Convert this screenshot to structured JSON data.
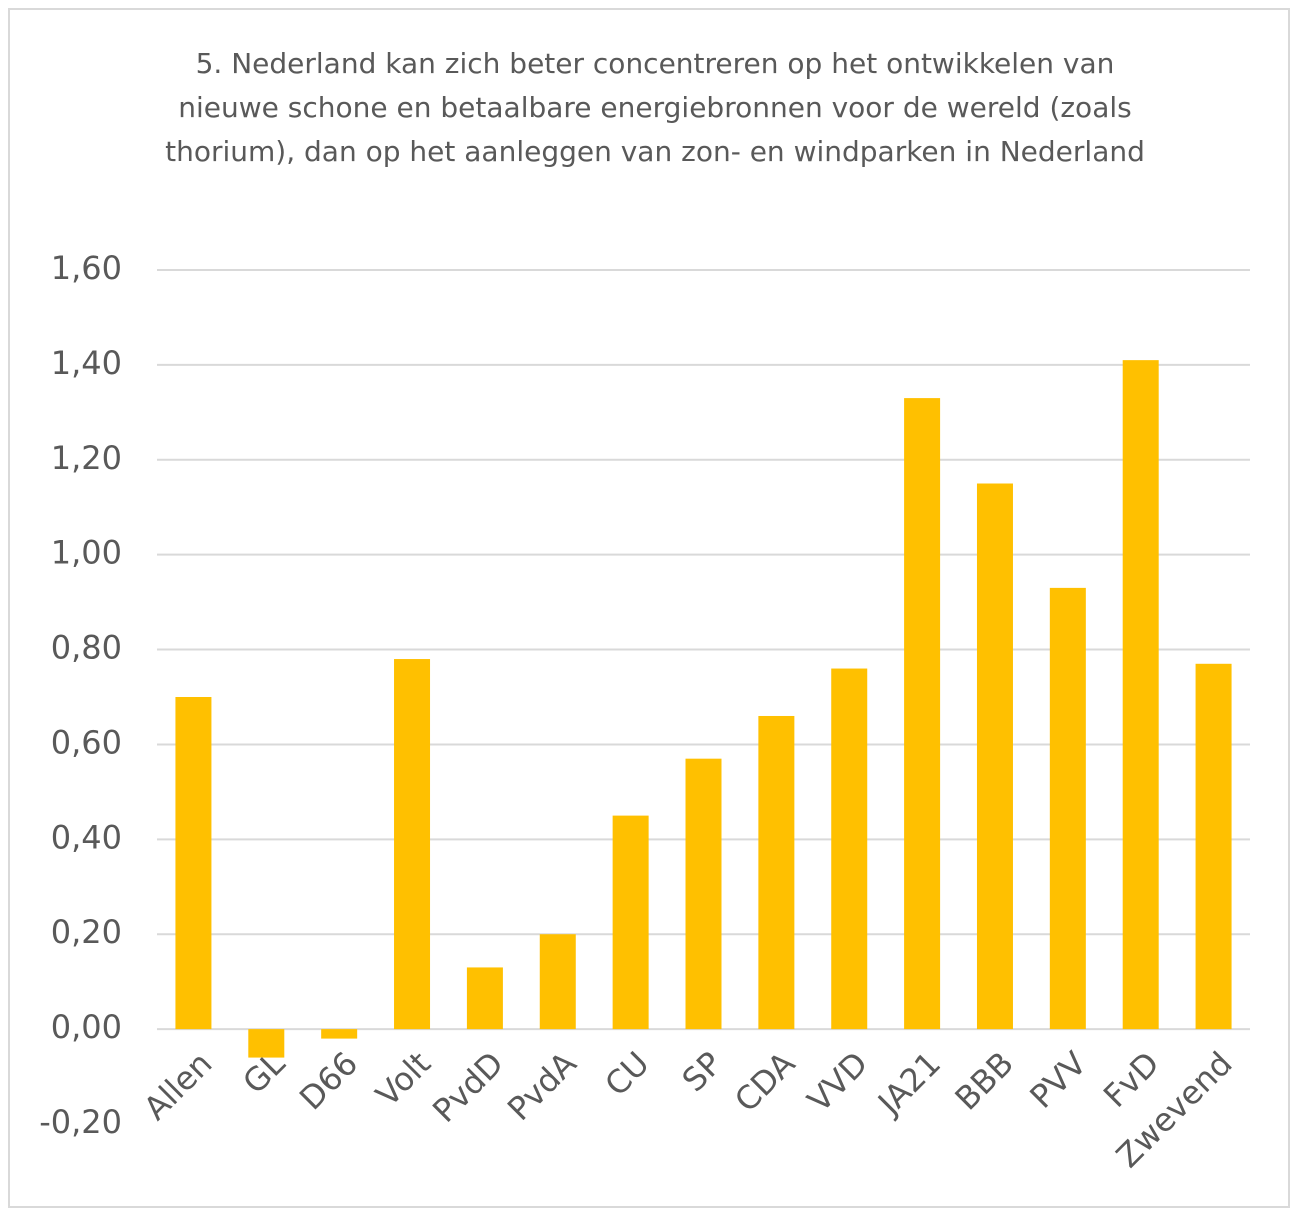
{
  "chart_data": {
    "type": "bar",
    "title": "5. Nederland kan zich beter concentreren op het ontwikkelen van nieuwe schone en betaalbare energiebronnen voor de wereld (zoals thorium), dan op het aanleggen van zon- en windparken in Nederland",
    "categories": [
      "Allen",
      "GL",
      "D66",
      "Volt",
      "PvdD",
      "PvdA",
      "CU",
      "SP",
      "CDA",
      "VVD",
      "JA21",
      "BBB",
      "PVV",
      "FvD",
      "Zwevend"
    ],
    "values": [
      0.7,
      -0.06,
      -0.02,
      0.78,
      0.13,
      0.2,
      0.45,
      0.57,
      0.66,
      0.76,
      1.33,
      1.15,
      0.93,
      1.41,
      0.77
    ],
    "color": "#ffc000",
    "ylim": [
      -0.2,
      1.6
    ],
    "yticks": [
      {
        "value": -0.2,
        "label": "-0,20"
      },
      {
        "value": 0,
        "label": "0,00"
      },
      {
        "value": 0.2,
        "label": "0,20"
      },
      {
        "value": 0.4,
        "label": "0,40"
      },
      {
        "value": 0.6,
        "label": "0,60"
      },
      {
        "value": 0.8,
        "label": "0,80"
      },
      {
        "value": 1.0,
        "label": "1,00"
      },
      {
        "value": 1.2,
        "label": "1,20"
      },
      {
        "value": 1.4,
        "label": "1,40"
      },
      {
        "value": 1.6,
        "label": "1,60"
      }
    ],
    "grid": true
  }
}
